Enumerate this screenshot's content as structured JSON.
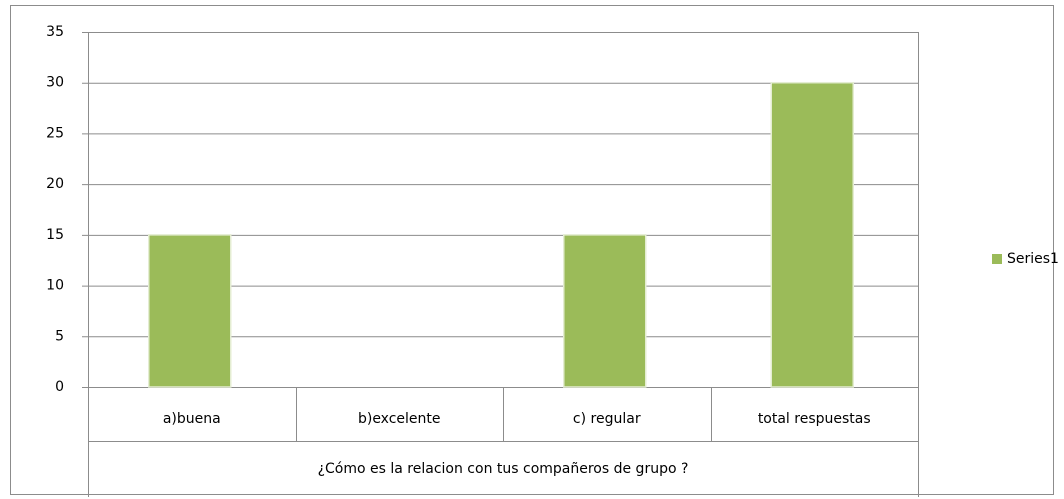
{
  "chart_data": {
    "type": "bar",
    "categories": [
      "a)buena",
      "b)excelente",
      "c) regular",
      "total respuestas"
    ],
    "x_group_label": "¿Cómo es la relacion con tus compañeros de grupo ?",
    "series": [
      {
        "name": "Series1",
        "color": "#9bbb59",
        "values": [
          15,
          0,
          15,
          30
        ]
      }
    ],
    "ylim": [
      0,
      35
    ],
    "yticks": [
      0,
      5,
      10,
      15,
      20,
      25,
      30,
      35
    ],
    "grid": true,
    "legend": "right"
  }
}
